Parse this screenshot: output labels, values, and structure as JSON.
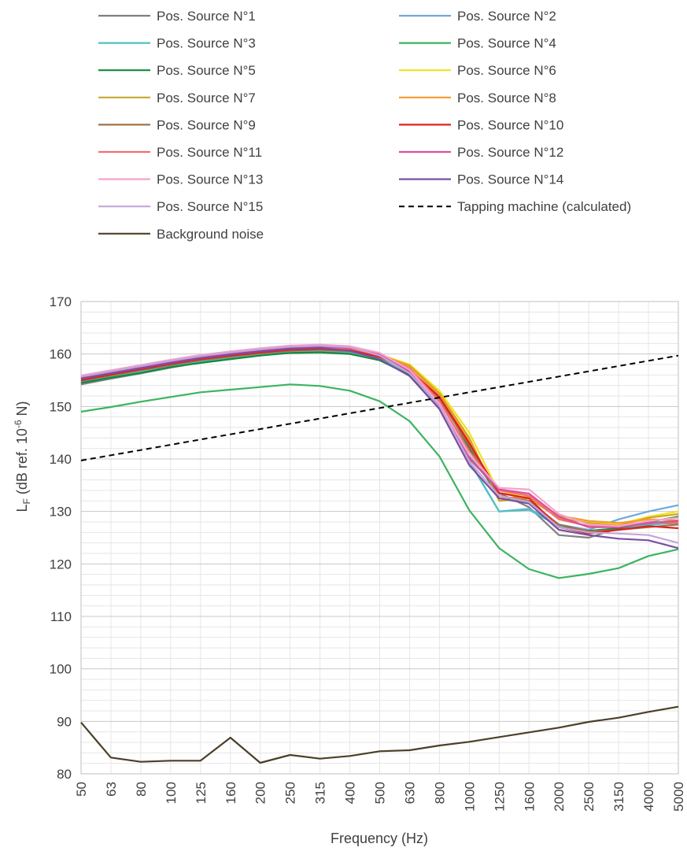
{
  "chart_data": {
    "type": "line",
    "xlabel": "Frequency (Hz)",
    "ylabel_main": "L",
    "ylabel_sub": "F",
    "ylabel_rest": " (dB ref. 10",
    "ylabel_sup": "-6",
    "ylabel_end": " N)",
    "ylim": [
      80,
      170
    ],
    "yticks": [
      80,
      90,
      100,
      110,
      120,
      130,
      140,
      150,
      160,
      170
    ],
    "categories": [
      "50",
      "63",
      "80",
      "100",
      "125",
      "160",
      "200",
      "250",
      "315",
      "400",
      "500",
      "630",
      "800",
      "1000",
      "1250",
      "1600",
      "2000",
      "2500",
      "3150",
      "4000",
      "5000"
    ],
    "grid": true,
    "legend_position": "top",
    "series": [
      {
        "name": "Pos. Source N°1",
        "color": "#7f7f7f",
        "dash": false,
        "values": [
          154.2,
          155.3,
          156.3,
          157.4,
          158.4,
          159.2,
          159.8,
          160.2,
          160.4,
          160.3,
          159.2,
          156.5,
          150.2,
          140.5,
          133.5,
          130.8,
          125.5,
          125.0,
          126.8,
          127.5,
          127.8
        ]
      },
      {
        "name": "Pos. Source N°2",
        "color": "#6fa8dc",
        "dash": false,
        "values": [
          155.0,
          156.0,
          157.0,
          158.0,
          158.9,
          159.6,
          160.2,
          160.7,
          160.8,
          160.5,
          159.3,
          156.4,
          150.3,
          139.5,
          130.0,
          130.5,
          127.5,
          126.5,
          128.5,
          130.0,
          131.2
        ]
      },
      {
        "name": "Pos. Source N°3",
        "color": "#4fc1c0",
        "dash": false,
        "values": [
          154.6,
          155.6,
          156.6,
          157.7,
          158.6,
          159.4,
          160.0,
          160.5,
          160.7,
          160.4,
          159.2,
          156.2,
          150.0,
          139.7,
          130.0,
          130.3,
          127.2,
          126.0,
          126.8,
          127.4,
          128.0
        ]
      },
      {
        "name": "Pos. Source N°4",
        "color": "#3cb460",
        "dash": false,
        "values": [
          149.0,
          149.9,
          150.9,
          151.8,
          152.7,
          153.2,
          153.7,
          154.2,
          153.9,
          153.0,
          151.0,
          147.2,
          140.5,
          130.2,
          123.0,
          119.0,
          117.3,
          118.1,
          119.2,
          121.5,
          122.8
        ]
      },
      {
        "name": "Pos. Source N°5",
        "color": "#118a3e",
        "dash": false,
        "values": [
          154.5,
          155.5,
          156.4,
          157.5,
          158.3,
          159.0,
          159.7,
          160.2,
          160.3,
          160.0,
          158.8,
          156.0,
          150.5,
          142.0,
          132.5,
          132.0,
          127.0,
          126.3,
          126.8,
          128.0,
          129.0
        ]
      },
      {
        "name": "Pos. Source N°6",
        "color": "#f2e21b",
        "dash": false,
        "values": [
          155.3,
          156.3,
          157.3,
          158.3,
          159.2,
          159.9,
          160.5,
          161.0,
          161.2,
          160.9,
          159.9,
          158.0,
          153.0,
          145.0,
          133.5,
          133.0,
          129.0,
          128.0,
          127.5,
          129.0,
          130.0
        ]
      },
      {
        "name": "Pos. Source N°7",
        "color": "#c9a72a",
        "dash": false,
        "values": [
          155.2,
          156.2,
          157.2,
          158.2,
          159.1,
          159.8,
          160.4,
          160.9,
          161.1,
          160.8,
          159.8,
          157.8,
          152.5,
          144.0,
          132.0,
          132.5,
          128.7,
          127.8,
          127.3,
          128.8,
          129.5
        ]
      },
      {
        "name": "Pos. Source N°8",
        "color": "#f39a2b",
        "dash": false,
        "values": [
          155.4,
          156.4,
          157.4,
          158.4,
          159.3,
          160.0,
          160.6,
          161.1,
          161.3,
          161.0,
          160.0,
          157.6,
          152.2,
          143.5,
          132.5,
          132.8,
          129.2,
          128.2,
          127.8,
          128.5,
          128.3
        ]
      },
      {
        "name": "Pos. Source N°9",
        "color": "#a07048",
        "dash": false,
        "values": [
          154.9,
          155.9,
          156.9,
          157.9,
          158.8,
          159.5,
          160.1,
          160.6,
          160.8,
          160.5,
          159.4,
          156.8,
          151.5,
          142.5,
          133.0,
          132.0,
          127.5,
          126.2,
          126.5,
          127.0,
          127.5
        ]
      },
      {
        "name": "Pos. Source N°10",
        "color": "#e02020",
        "dash": false,
        "values": [
          155.0,
          156.1,
          157.1,
          158.1,
          159.0,
          159.7,
          160.3,
          160.8,
          161.0,
          160.7,
          159.5,
          157.0,
          151.8,
          143.0,
          133.5,
          132.5,
          127.0,
          125.8,
          126.5,
          127.2,
          126.8
        ]
      },
      {
        "name": "Pos. Source N°11",
        "color": "#f07070",
        "dash": false,
        "values": [
          155.6,
          156.6,
          157.6,
          158.6,
          159.5,
          160.2,
          160.8,
          161.3,
          161.5,
          161.2,
          160.0,
          157.2,
          151.0,
          141.5,
          134.0,
          133.0,
          128.5,
          127.2,
          127.3,
          128.0,
          127.8
        ]
      },
      {
        "name": "Pos. Source N°12",
        "color": "#d94fa0",
        "dash": false,
        "values": [
          155.5,
          156.5,
          157.5,
          158.5,
          159.4,
          160.1,
          160.7,
          161.2,
          161.4,
          161.1,
          159.9,
          156.6,
          150.0,
          140.0,
          134.2,
          133.4,
          129.0,
          127.0,
          127.0,
          127.8,
          128.2
        ]
      },
      {
        "name": "Pos. Source N°13",
        "color": "#f5a3cf",
        "dash": false,
        "values": [
          155.9,
          156.9,
          157.9,
          158.9,
          159.8,
          160.5,
          161.1,
          161.6,
          161.8,
          161.5,
          160.2,
          157.0,
          150.5,
          140.8,
          134.5,
          134.2,
          129.5,
          127.5,
          127.2,
          128.2,
          128.8
        ]
      },
      {
        "name": "Pos. Source N°14",
        "color": "#7a4fa3",
        "dash": false,
        "values": [
          155.3,
          156.3,
          157.3,
          158.3,
          159.2,
          159.9,
          160.5,
          161.0,
          161.2,
          160.6,
          159.0,
          155.8,
          149.5,
          138.8,
          132.5,
          131.5,
          126.5,
          125.5,
          124.8,
          124.5,
          123.0
        ]
      },
      {
        "name": "Pos. Source N°15",
        "color": "#c5a6d8",
        "dash": false,
        "values": [
          155.7,
          156.7,
          157.7,
          158.7,
          159.6,
          160.3,
          160.9,
          161.4,
          161.6,
          161.3,
          159.7,
          156.3,
          150.2,
          139.5,
          133.0,
          131.8,
          127.0,
          126.0,
          125.8,
          125.5,
          124.0
        ]
      },
      {
        "name": "Tapping machine (calculated)",
        "color": "#000000",
        "dash": true,
        "values": [
          139.7,
          140.7,
          141.7,
          142.7,
          143.7,
          144.7,
          145.7,
          146.7,
          147.7,
          148.7,
          149.7,
          150.7,
          151.7,
          152.7,
          153.7,
          154.7,
          155.7,
          156.7,
          157.7,
          158.7,
          159.7
        ]
      },
      {
        "name": "Background noise",
        "color": "#4b3f2a",
        "dash": false,
        "values": [
          89.8,
          83.1,
          82.3,
          82.5,
          82.5,
          86.9,
          82.1,
          83.6,
          82.9,
          83.4,
          84.3,
          84.5,
          85.4,
          86.1,
          87.0,
          87.9,
          88.8,
          89.9,
          90.7,
          91.8,
          92.8
        ]
      }
    ]
  }
}
